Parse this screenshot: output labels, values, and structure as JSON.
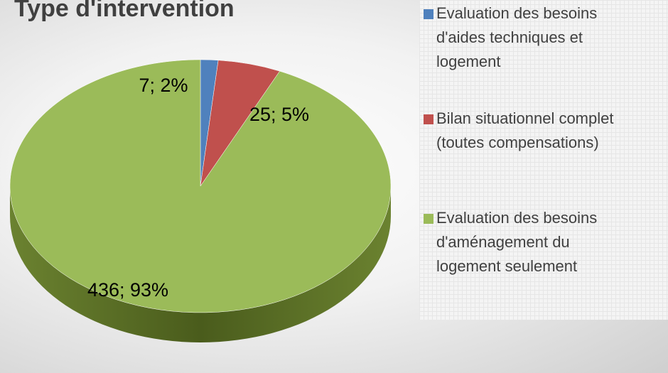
{
  "chart_data": {
    "type": "pie",
    "title": "Type d'intervention",
    "categories": [
      "Evaluation des besoins d'aides techniques et logement",
      "Bilan situationnel complet (toutes compensations)",
      "Evaluation des besoins d'aménagement du logement seulement"
    ],
    "values": [
      7,
      25,
      436
    ],
    "value_labels": [
      "7; 2%",
      "25; 5%",
      "436; 93%"
    ],
    "colors": [
      "#4f81bd",
      "#c0504d",
      "#9bbb59"
    ],
    "legend": "right"
  }
}
